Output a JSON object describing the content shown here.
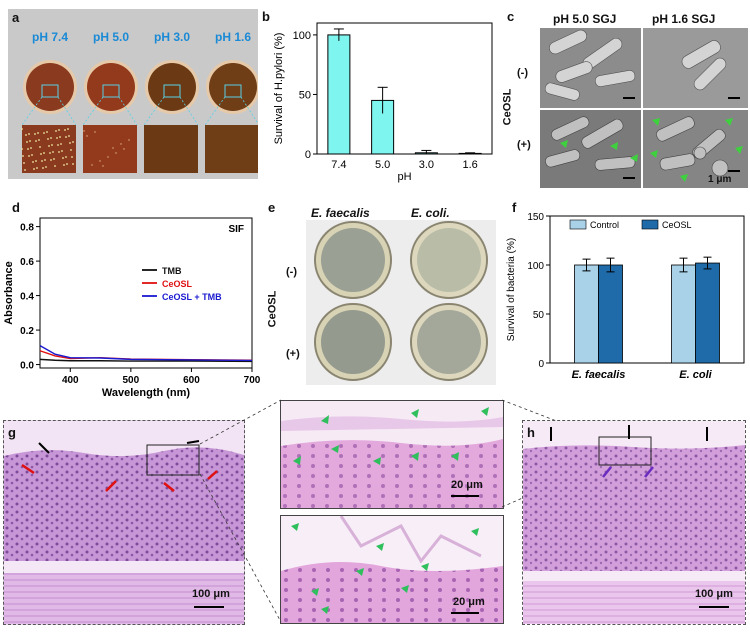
{
  "panels": {
    "a": {
      "label": "a",
      "ph_labels": [
        "pH 7.4",
        "pH 5.0",
        "pH 3.0",
        "pH 1.6"
      ],
      "plate_colors": [
        "#8a3a1e",
        "#93391c",
        "#6b3a14",
        "#6f3d16"
      ]
    },
    "b": {
      "label": "b"
    },
    "c": {
      "label": "c",
      "col_titles": [
        "pH 5.0 SGJ",
        "pH 1.6 SGJ"
      ],
      "row_minus": "(-)",
      "row_plus": "(+)",
      "side": "CeOSL",
      "scale": "1 μm"
    },
    "d": {
      "label": "d"
    },
    "e": {
      "label": "e",
      "col_titles": [
        "E. faecalis",
        "E. coli."
      ],
      "row_minus": "(-)",
      "row_plus": "(+)",
      "side": "CeOSL"
    },
    "f": {
      "label": "f"
    },
    "g": {
      "label": "g",
      "scale": "100 μm"
    },
    "h": {
      "label": "h",
      "scale": "100 μm"
    },
    "zoom_top": {
      "scale": "20 μm"
    },
    "zoom_bottom": {
      "scale": "20 μm"
    }
  },
  "chart_data": [
    {
      "id": "b",
      "type": "bar",
      "categories": [
        "7.4",
        "5.0",
        "3.0",
        "1.6"
      ],
      "values": [
        100,
        45,
        1,
        0.5
      ],
      "errors": [
        5,
        11,
        2,
        0.5
      ],
      "xlabel": "pH",
      "ylabel": "Survival of H.pylori (%)",
      "ylim": [
        0,
        110
      ],
      "yticks": [
        0,
        50,
        100
      ],
      "colors": {
        "bar": "#7ff5f0"
      }
    },
    {
      "id": "d",
      "type": "line",
      "annotation": "SIF",
      "xlabel": "Wavelength (nm)",
      "ylabel": "Absorbance",
      "xlim": [
        350,
        700
      ],
      "ylim": [
        -0.02,
        0.85
      ],
      "xticks": [
        400,
        500,
        600,
        700
      ],
      "yticks": [
        0.0,
        0.2,
        0.4,
        0.6,
        0.8
      ],
      "legend_position": "upper-right",
      "series": [
        {
          "name": "TMB",
          "color": "#111111",
          "x": [
            350,
            375,
            400,
            450,
            500,
            600,
            700
          ],
          "y": [
            0.03,
            0.025,
            0.022,
            0.022,
            0.02,
            0.02,
            0.018
          ]
        },
        {
          "name": "CeOSL",
          "color": "#e01010",
          "x": [
            350,
            375,
            400,
            450,
            500,
            600,
            700
          ],
          "y": [
            0.08,
            0.05,
            0.035,
            0.04,
            0.032,
            0.028,
            0.025
          ]
        },
        {
          "name": "CeOSL + TMB",
          "color": "#1a1ad0",
          "x": [
            350,
            375,
            400,
            450,
            500,
            600,
            700
          ],
          "y": [
            0.11,
            0.06,
            0.04,
            0.038,
            0.03,
            0.027,
            0.024
          ]
        }
      ]
    },
    {
      "id": "f",
      "type": "bar",
      "categories": [
        "E. faecalis",
        "E. coli"
      ],
      "series": [
        {
          "name": "Control",
          "color": "#a9d1e8",
          "values": [
            100,
            100
          ],
          "errors": [
            6,
            7
          ]
        },
        {
          "name": "CeOSL",
          "color": "#1f6aa8",
          "values": [
            100,
            102
          ],
          "errors": [
            7,
            6
          ]
        }
      ],
      "ylabel": "Survival of bacteria (%)",
      "ylim": [
        0,
        150
      ],
      "yticks": [
        0,
        50,
        100,
        150
      ],
      "legend_position": "top"
    }
  ]
}
